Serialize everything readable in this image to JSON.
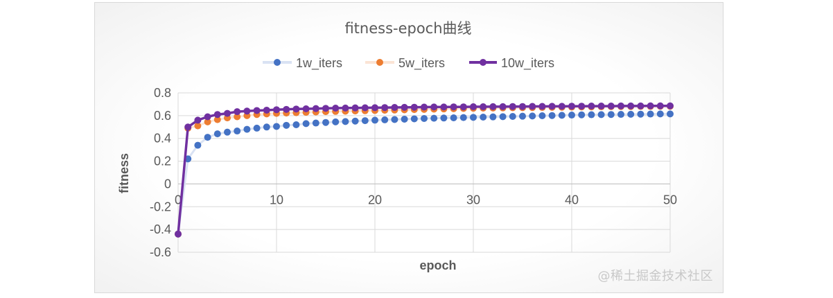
{
  "chart_data": {
    "type": "line",
    "title": "fitness-epoch曲线",
    "xlabel": "epoch",
    "ylabel": "fitness",
    "xlim": [
      0,
      50
    ],
    "ylim": [
      -0.6,
      0.8
    ],
    "x_ticks": [
      "0",
      "10",
      "20",
      "30",
      "40",
      "50"
    ],
    "y_ticks": [
      "0.8",
      "0.6",
      "0.4",
      "0.2",
      "0",
      "-0.2",
      "-0.4",
      "-0.6"
    ],
    "grid": "horizontal and vertical major gridlines",
    "legend_position": "top",
    "x": [
      0,
      1,
      2,
      3,
      4,
      5,
      6,
      7,
      8,
      9,
      10,
      11,
      12,
      13,
      14,
      15,
      16,
      17,
      18,
      19,
      20,
      21,
      22,
      23,
      24,
      25,
      26,
      27,
      28,
      29,
      30,
      31,
      32,
      33,
      34,
      35,
      36,
      37,
      38,
      39,
      40,
      41,
      42,
      43,
      44,
      45,
      46,
      47,
      48,
      49,
      50
    ],
    "series": [
      {
        "name": "1w_iters",
        "color": "#4472c4",
        "line_color": "#d9e2f3",
        "values": [
          -0.44,
          0.22,
          0.34,
          0.41,
          0.44,
          0.455,
          0.465,
          0.48,
          0.49,
          0.5,
          0.505,
          0.515,
          0.52,
          0.53,
          0.535,
          0.54,
          0.545,
          0.548,
          0.552,
          0.556,
          0.56,
          0.563,
          0.566,
          0.569,
          0.572,
          0.575,
          0.577,
          0.579,
          0.581,
          0.583,
          0.585,
          0.587,
          0.589,
          0.591,
          0.593,
          0.595,
          0.597,
          0.599,
          0.601,
          0.603,
          0.605,
          0.607,
          0.608,
          0.609,
          0.61,
          0.611,
          0.612,
          0.613,
          0.614,
          0.615,
          0.615
        ]
      },
      {
        "name": "5w_iters",
        "color": "#ed7d31",
        "line_color": "#fbe4d5",
        "values": [
          -0.44,
          0.49,
          0.51,
          0.545,
          0.565,
          0.58,
          0.59,
          0.6,
          0.61,
          0.615,
          0.62,
          0.623,
          0.626,
          0.629,
          0.632,
          0.635,
          0.637,
          0.639,
          0.641,
          0.643,
          0.645,
          0.647,
          0.649,
          0.651,
          0.653,
          0.655,
          0.657,
          0.659,
          0.661,
          0.663,
          0.665,
          0.666,
          0.667,
          0.668,
          0.669,
          0.67,
          0.671,
          0.672,
          0.673,
          0.674,
          0.675,
          0.676,
          0.677,
          0.678,
          0.679,
          0.68,
          0.68,
          0.681,
          0.681,
          0.682,
          0.682
        ]
      },
      {
        "name": "10w_iters",
        "color": "#7030a0",
        "line_color": "#7030a0",
        "values": [
          -0.44,
          0.5,
          0.56,
          0.59,
          0.61,
          0.62,
          0.635,
          0.64,
          0.645,
          0.648,
          0.652,
          0.655,
          0.658,
          0.66,
          0.662,
          0.664,
          0.666,
          0.667,
          0.668,
          0.669,
          0.67,
          0.671,
          0.672,
          0.673,
          0.674,
          0.675,
          0.676,
          0.676,
          0.677,
          0.677,
          0.678,
          0.678,
          0.679,
          0.679,
          0.68,
          0.68,
          0.681,
          0.681,
          0.682,
          0.682,
          0.683,
          0.683,
          0.684,
          0.684,
          0.684,
          0.685,
          0.685,
          0.685,
          0.686,
          0.686,
          0.686
        ]
      }
    ]
  },
  "watermark": "@稀土掘金技术社区"
}
